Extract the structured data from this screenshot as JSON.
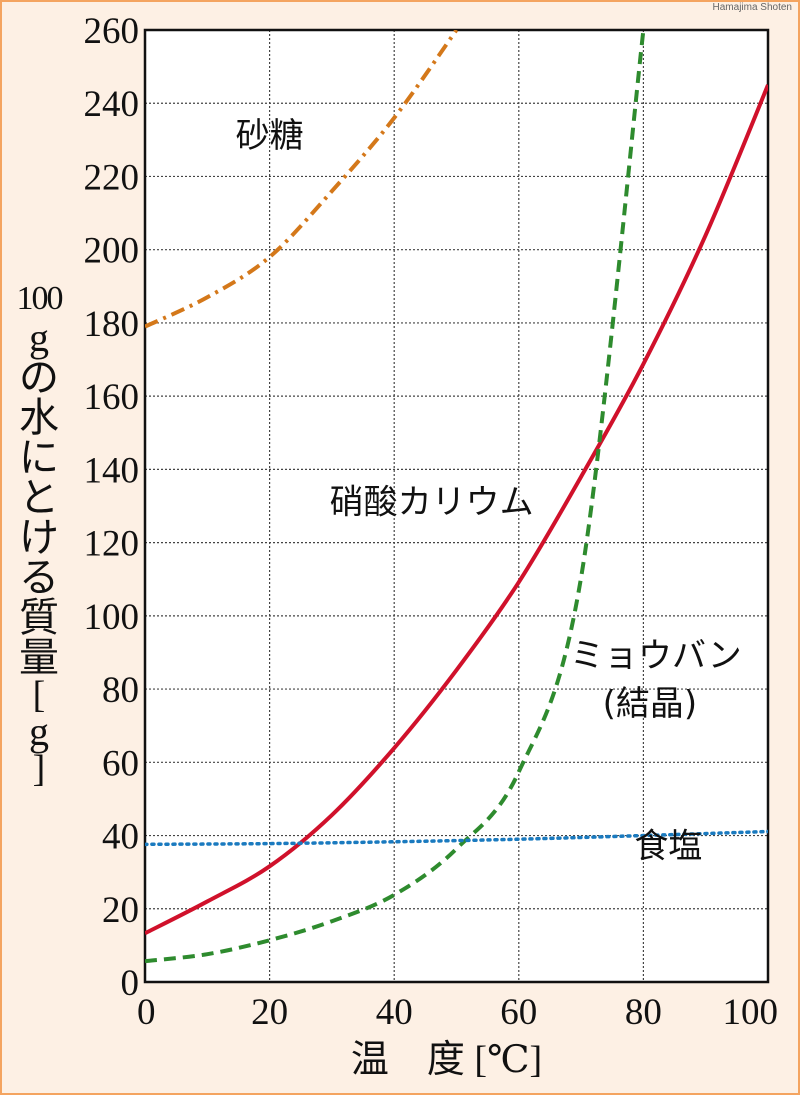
{
  "credit": "Hamajima Shoten",
  "ylabel": {
    "number": "100",
    "chars": [
      "g",
      "の",
      "水",
      "に",
      "と",
      "け",
      "る",
      "質",
      "量",
      "[",
      "g",
      "]"
    ]
  },
  "chart_data": {
    "type": "line",
    "xlabel": "温　度 [℃]",
    "ylabel": "100gの水にとける質量[g]",
    "xlim": [
      0,
      100
    ],
    "ylim": [
      0,
      260
    ],
    "xticks": [
      0,
      20,
      40,
      60,
      80,
      100
    ],
    "yticks": [
      0,
      20,
      40,
      60,
      80,
      100,
      120,
      140,
      160,
      180,
      200,
      220,
      240,
      260
    ],
    "xtick_labels": [
      "0",
      "20",
      "40",
      "60",
      "80",
      "100"
    ],
    "ytick_labels": [
      "0",
      "20",
      "40",
      "60",
      "80",
      "100",
      "120",
      "140",
      "160",
      "180",
      "200",
      "220",
      "240",
      "260"
    ],
    "grid": true,
    "series": [
      {
        "name": "砂糖",
        "color": "#d4781a",
        "style": "dashdot",
        "label_at": [
          20,
          228
        ],
        "x": [
          0,
          10,
          20,
          30,
          40,
          50
        ],
        "y": [
          179,
          187,
          198,
          216,
          236,
          260
        ]
      },
      {
        "name": "硝酸カリウム",
        "color": "#d0112b",
        "style": "solid",
        "label_at": [
          46,
          128
        ],
        "x": [
          0,
          10,
          20,
          30,
          40,
          50,
          60,
          70,
          80,
          90,
          100
        ],
        "y": [
          13.3,
          22,
          31.6,
          45.6,
          63.9,
          85.2,
          109.2,
          138,
          168.8,
          204,
          245
        ]
      },
      {
        "name": "ミョウバン",
        "name_line2": "(結晶)",
        "color": "#2e8b2e",
        "style": "dashed",
        "label_at": [
          82,
          86
        ],
        "x": [
          0,
          10,
          20,
          30,
          40,
          50,
          60,
          70,
          80
        ],
        "y": [
          5.7,
          7.6,
          11.4,
          16.6,
          23.8,
          36.4,
          57.4,
          110.5,
          260
        ]
      },
      {
        "name": "食塩",
        "color": "#1a7abf",
        "style": "dotted",
        "label_at": [
          84,
          34
        ],
        "x": [
          0,
          20,
          40,
          60,
          80,
          100
        ],
        "y": [
          37.6,
          37.8,
          38.3,
          39.0,
          40.0,
          41.1
        ]
      }
    ]
  }
}
